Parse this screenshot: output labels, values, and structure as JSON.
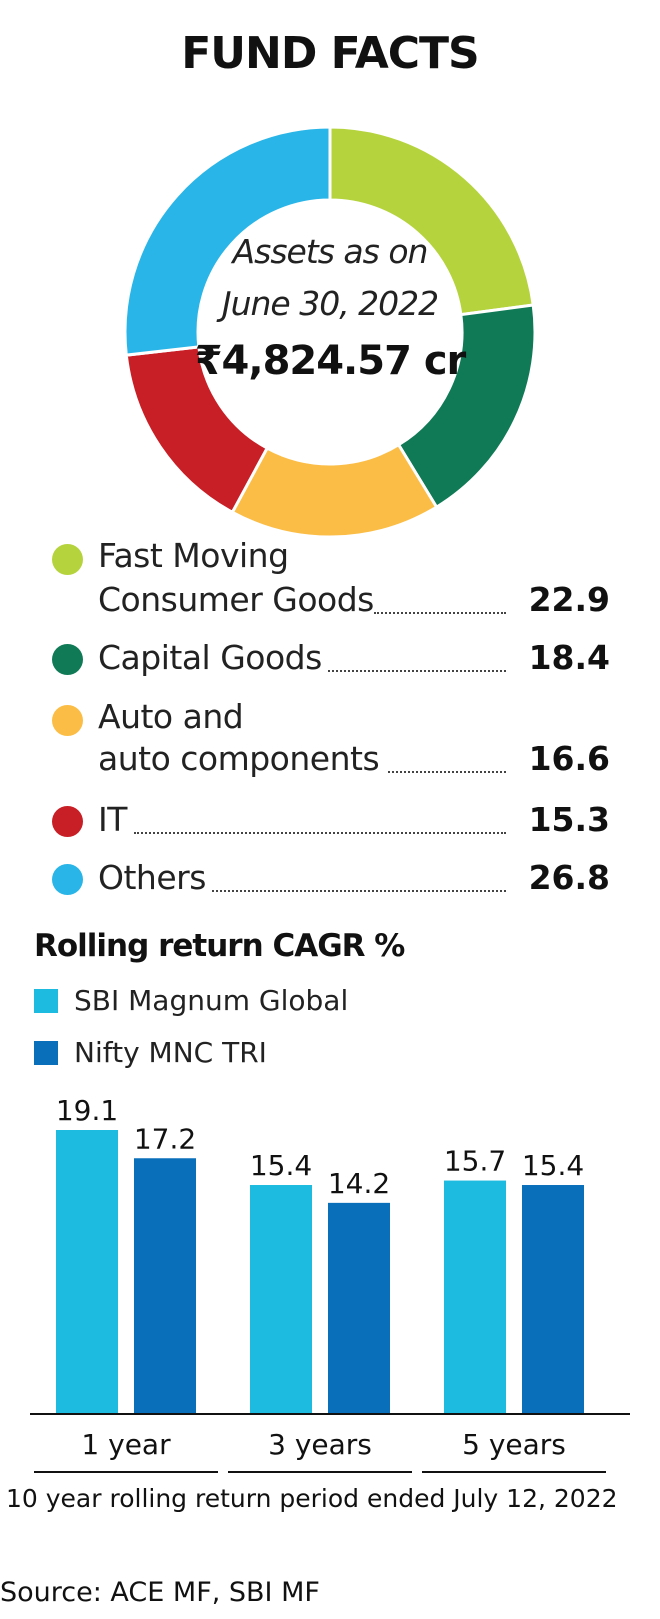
{
  "title": "FUND FACTS",
  "colors": {
    "fmcg": "#b5d33d",
    "capital_goods": "#0f7a55",
    "auto": "#fbbd45",
    "it": "#c81e25",
    "others": "#29b5e8",
    "sbi": "#1dbbe0",
    "nifty": "#0a6fba"
  },
  "donut": {
    "label_line1": "Assets as on",
    "label_line2": "June 30, 2022",
    "value": "₹4,824.57 cr"
  },
  "legend": [
    {
      "line1": "Fast Moving",
      "line2": "Consumer Goods",
      "value": "22.9",
      "color_key": "fmcg"
    },
    {
      "line1": "Capital Goods",
      "value": "18.4",
      "color_key": "capital_goods"
    },
    {
      "line1": "Auto and",
      "line2": "auto components",
      "value": "16.6",
      "color_key": "auto"
    },
    {
      "line1": "IT",
      "value": "15.3",
      "color_key": "it"
    },
    {
      "line1": "Others",
      "value": "26.8",
      "color_key": "others"
    }
  ],
  "bar_section": {
    "title": "Rolling return CAGR %",
    "footnote": "10 year rolling return period ended July 12, 2022"
  },
  "source": "Source: ACE MF, SBI MF",
  "chart_data": [
    {
      "type": "pie",
      "categories": [
        "Fast Moving Consumer Goods",
        "Capital Goods",
        "Auto and auto components",
        "IT",
        "Others"
      ],
      "values": [
        22.9,
        18.4,
        16.6,
        15.3,
        26.8
      ]
    },
    {
      "type": "bar",
      "title": "Rolling return CAGR %",
      "categories": [
        "1 year",
        "3 years",
        "5 years"
      ],
      "series": [
        {
          "name": "SBI Magnum Global",
          "values": [
            19.1,
            15.4,
            15.7
          ]
        },
        {
          "name": "Nifty MNC TRI",
          "values": [
            17.2,
            14.2,
            15.4
          ]
        }
      ],
      "ylim": [
        0,
        19.1
      ],
      "legend": "top-left",
      "grid": false
    }
  ]
}
